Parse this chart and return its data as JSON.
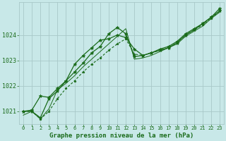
{
  "title": "Graphe pression niveau de la mer (hPa)",
  "title_fontsize": 6.5,
  "background_color": "#c8e8e8",
  "line_color": "#1a6b1a",
  "grid_color": "#a8c8c8",
  "xlim": [
    -0.5,
    23.5
  ],
  "ylim": [
    1020.5,
    1025.3
  ],
  "yticks": [
    1021,
    1022,
    1023,
    1024
  ],
  "xticks": [
    0,
    1,
    2,
    3,
    4,
    5,
    6,
    7,
    8,
    9,
    10,
    11,
    12,
    13,
    14,
    15,
    16,
    17,
    18,
    19,
    20,
    21,
    22,
    23
  ],
  "line1_x": [
    0,
    1,
    2,
    3,
    4,
    5,
    6,
    7,
    8,
    9,
    10,
    11,
    12,
    13,
    14,
    15,
    16,
    17,
    18,
    19,
    20,
    21,
    22,
    23
  ],
  "line1_y": [
    1021.0,
    1021.0,
    1020.75,
    1021.5,
    1021.8,
    1022.2,
    1022.55,
    1022.9,
    1023.3,
    1023.55,
    1024.05,
    1024.3,
    1024.05,
    1023.15,
    1023.2,
    1023.3,
    1023.45,
    1023.55,
    1023.75,
    1024.05,
    1024.25,
    1024.45,
    1024.7,
    1024.95
  ],
  "line2_x": [
    0,
    1,
    2,
    3,
    4,
    5,
    6,
    7,
    8,
    9,
    10,
    11,
    12,
    13,
    14,
    15,
    16,
    17,
    18,
    19,
    20,
    21,
    22,
    23
  ],
  "line2_y": [
    1021.0,
    1021.05,
    1021.6,
    1021.55,
    1021.9,
    1022.2,
    1022.85,
    1023.2,
    1023.5,
    1023.8,
    1023.85,
    1024.0,
    1023.9,
    1023.45,
    1023.2,
    1023.3,
    1023.4,
    1023.5,
    1023.7,
    1024.0,
    1024.2,
    1024.45,
    1024.7,
    1025.05
  ],
  "line3_x": [
    0,
    1,
    2,
    3,
    4,
    5,
    6,
    7,
    8,
    9,
    10,
    11,
    12,
    13,
    14,
    15,
    16,
    17,
    18,
    19,
    20,
    21,
    22,
    23
  ],
  "line3_y": [
    1020.85,
    1021.0,
    1020.7,
    1021.1,
    1021.85,
    1022.1,
    1022.4,
    1022.75,
    1023.05,
    1023.35,
    1023.65,
    1023.95,
    1024.25,
    1023.05,
    1023.1,
    1023.2,
    1023.35,
    1023.5,
    1023.65,
    1023.95,
    1024.15,
    1024.35,
    1024.65,
    1024.9
  ],
  "line4_x": [
    0,
    1,
    2,
    3,
    4,
    5,
    6,
    7,
    8,
    9,
    10,
    11,
    12,
    13,
    14,
    15,
    16,
    17,
    18,
    19,
    20,
    21,
    22,
    23
  ],
  "line4_y": [
    1021.0,
    1021.0,
    1020.7,
    1021.0,
    1021.5,
    1021.9,
    1022.2,
    1022.55,
    1022.85,
    1023.1,
    1023.4,
    1023.65,
    1023.85,
    1023.25,
    1023.2,
    1023.3,
    1023.4,
    1023.5,
    1023.7,
    1024.0,
    1024.2,
    1024.4,
    1024.65,
    1024.95
  ]
}
